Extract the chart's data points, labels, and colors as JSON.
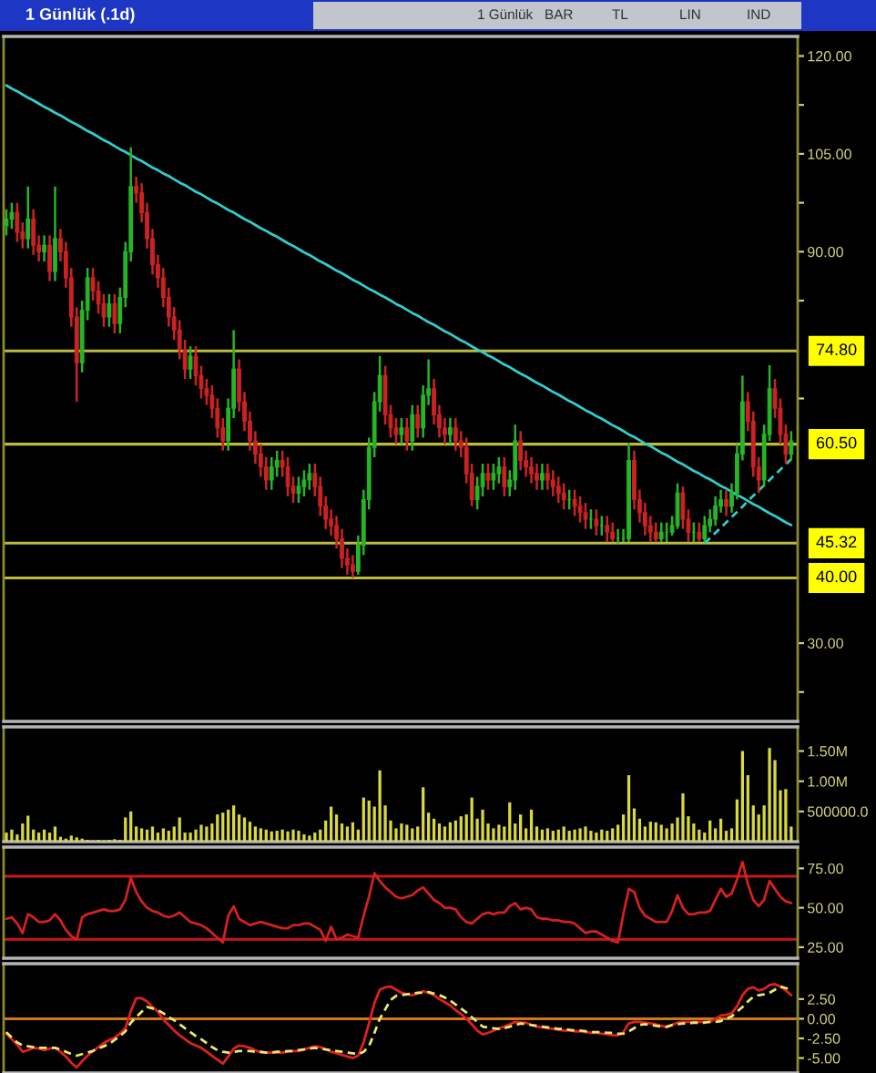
{
  "chart_data": [
    {
      "type": "candlestick",
      "title": "1 Günlük (.1d)",
      "annotations": [
        "1 Günlük",
        "BAR",
        "TL",
        "LIN",
        "IND"
      ],
      "categories": [
        null,
        null,
        null,
        null,
        null,
        null,
        null,
        null,
        null,
        null,
        null,
        null,
        null,
        null,
        null,
        null,
        null,
        null,
        null,
        null,
        null,
        null,
        null,
        null,
        null,
        null,
        null,
        null,
        null,
        null,
        null,
        null,
        null,
        null,
        null,
        null,
        null,
        null,
        null,
        null,
        null,
        null,
        null,
        null,
        null,
        null,
        null,
        null,
        null,
        null,
        null,
        null,
        null,
        null,
        null,
        null,
        null,
        null,
        null,
        null,
        null,
        null,
        null,
        null,
        null,
        null,
        null,
        null,
        null,
        null,
        null,
        null,
        null,
        null,
        null,
        null,
        null,
        null,
        null,
        null,
        null,
        null,
        null,
        null,
        null,
        null,
        null,
        null,
        null,
        null,
        null,
        null,
        null,
        null,
        null,
        null,
        null,
        null,
        null,
        null,
        null,
        null,
        null,
        null,
        null,
        null,
        null,
        null,
        null,
        null,
        null,
        null,
        null,
        null,
        null,
        null,
        null,
        null,
        null,
        null,
        null,
        null,
        null,
        null,
        null,
        null,
        null,
        null,
        null,
        null,
        null,
        null,
        null,
        null,
        null,
        null,
        null,
        null,
        null,
        null,
        null,
        null,
        null,
        null,
        null,
        null
      ],
      "ohlc": [
        [
          94,
          96.5,
          92.5,
          95
        ],
        [
          95,
          97.5,
          93.5,
          96
        ],
        [
          96,
          97.5,
          91.5,
          93
        ],
        [
          93,
          94.5,
          90.5,
          92
        ],
        [
          92,
          100,
          90.5,
          95
        ],
        [
          95,
          96.5,
          89.5,
          91
        ],
        [
          91,
          92.5,
          88.5,
          90
        ],
        [
          90,
          92.5,
          88.5,
          91
        ],
        [
          91,
          92.5,
          85.5,
          87
        ],
        [
          87,
          100,
          85.5,
          92
        ],
        [
          92,
          93.5,
          88.5,
          90
        ],
        [
          90,
          91.5,
          84.5,
          86
        ],
        [
          86,
          87.5,
          78.5,
          80
        ],
        [
          80,
          81.5,
          67,
          73
        ],
        [
          73,
          82.5,
          71.5,
          81
        ],
        [
          81,
          87.5,
          79.5,
          86
        ],
        [
          86,
          87.5,
          82.5,
          84
        ],
        [
          84,
          85.5,
          80.5,
          82
        ],
        [
          82,
          83.5,
          78.5,
          80
        ],
        [
          80,
          83.5,
          78.5,
          82
        ],
        [
          82,
          83.5,
          77.5,
          79
        ],
        [
          79,
          84.5,
          77.5,
          83
        ],
        [
          83,
          91.5,
          81.5,
          90
        ],
        [
          90,
          106,
          88.5,
          100
        ],
        [
          100,
          101.5,
          97.5,
          99
        ],
        [
          99,
          100.5,
          94.5,
          96
        ],
        [
          96,
          97.5,
          90.5,
          92
        ],
        [
          92,
          93.5,
          86.5,
          88
        ],
        [
          88,
          89.5,
          84.5,
          86
        ],
        [
          86,
          87.5,
          81.5,
          83
        ],
        [
          83,
          84.5,
          78.5,
          80
        ],
        [
          80,
          81.5,
          76.5,
          78
        ],
        [
          78,
          79.5,
          73.5,
          75
        ],
        [
          75,
          76.5,
          70.5,
          72
        ],
        [
          72,
          75.5,
          70.5,
          74
        ],
        [
          74,
          75.5,
          69.5,
          71
        ],
        [
          71,
          72.5,
          67.5,
          69
        ],
        [
          69,
          70.5,
          66.5,
          68
        ],
        [
          68,
          69.5,
          64.5,
          66
        ],
        [
          66,
          67.5,
          61.5,
          63
        ],
        [
          63,
          64.5,
          59.5,
          61
        ],
        [
          61,
          67.5,
          59.5,
          66
        ],
        [
          66,
          78,
          64.5,
          72
        ],
        [
          72,
          73.5,
          65.5,
          67
        ],
        [
          67,
          68.5,
          62.5,
          64
        ],
        [
          64,
          65.5,
          59.5,
          61
        ],
        [
          61,
          62.5,
          57.5,
          59
        ],
        [
          59,
          60.5,
          55.5,
          57
        ],
        [
          57,
          58.5,
          53.5,
          55
        ],
        [
          55,
          58.5,
          53.5,
          57
        ],
        [
          57,
          59.5,
          55.5,
          58
        ],
        [
          58,
          59.5,
          55.5,
          57
        ],
        [
          57,
          58.5,
          52.5,
          54
        ],
        [
          54,
          55.5,
          51.5,
          53
        ],
        [
          53,
          55.5,
          51.5,
          54
        ],
        [
          54,
          56.5,
          52.5,
          55
        ],
        [
          55,
          57.5,
          53.5,
          56
        ],
        [
          56,
          57.5,
          52.5,
          54
        ],
        [
          54,
          55.5,
          49.5,
          51
        ],
        [
          51,
          52.5,
          47.5,
          49
        ],
        [
          49,
          50.5,
          46.5,
          48
        ],
        [
          48,
          49.5,
          44.5,
          46
        ],
        [
          46,
          47.5,
          41.5,
          43
        ],
        [
          43,
          44.5,
          40.5,
          42
        ],
        [
          42,
          43.5,
          40,
          41
        ],
        [
          41,
          46.5,
          40.5,
          45
        ],
        [
          45,
          53.5,
          43.5,
          52
        ],
        [
          52,
          61.5,
          50.5,
          60
        ],
        [
          60,
          68.5,
          58.5,
          67
        ],
        [
          67,
          74,
          65.5,
          71
        ],
        [
          71,
          72.5,
          63.5,
          65
        ],
        [
          65,
          66.5,
          61.5,
          63
        ],
        [
          63,
          64.5,
          60.5,
          62
        ],
        [
          62,
          64.5,
          60.5,
          63
        ],
        [
          63,
          64.5,
          59.5,
          61
        ],
        [
          61,
          66.5,
          59.5,
          65
        ],
        [
          65,
          66.5,
          61.5,
          63
        ],
        [
          63,
          69.5,
          61.5,
          68
        ],
        [
          68,
          73.5,
          66.5,
          69
        ],
        [
          69,
          70.5,
          63.5,
          65
        ],
        [
          65,
          66.5,
          61.5,
          63
        ],
        [
          63,
          64.5,
          60.5,
          62
        ],
        [
          62,
          64.5,
          60.5,
          63
        ],
        [
          63,
          64.5,
          59.5,
          61
        ],
        [
          61,
          62.5,
          58.5,
          60
        ],
        [
          60,
          61.5,
          54.5,
          56
        ],
        [
          56,
          57.5,
          51,
          52
        ],
        [
          52,
          55.5,
          50.5,
          54
        ],
        [
          54,
          57.5,
          52.5,
          56
        ],
        [
          56,
          57.5,
          53.5,
          55
        ],
        [
          55,
          57.5,
          53.5,
          56
        ],
        [
          56,
          58.5,
          54.5,
          57
        ],
        [
          57,
          58.5,
          52.5,
          54
        ],
        [
          54,
          56.5,
          52.5,
          55
        ],
        [
          55,
          63.5,
          53.5,
          61
        ],
        [
          61,
          62.5,
          56.5,
          58
        ],
        [
          58,
          59.5,
          55.5,
          57
        ],
        [
          57,
          58.5,
          54.5,
          56
        ],
        [
          56,
          57.5,
          53.5,
          55
        ],
        [
          55,
          57.5,
          53.5,
          56
        ],
        [
          56,
          57.5,
          53.5,
          55
        ],
        [
          55,
          56.5,
          52.5,
          54
        ],
        [
          54,
          55.5,
          51.5,
          53
        ],
        [
          53,
          54.5,
          50.5,
          52
        ],
        [
          52,
          53.5,
          50.5,
          52
        ],
        [
          52,
          53.5,
          49.5,
          51
        ],
        [
          51,
          52.5,
          48.5,
          50
        ],
        [
          50,
          51.5,
          47.5,
          49
        ],
        [
          49,
          50.5,
          47.5,
          49
        ],
        [
          49,
          50.5,
          46.5,
          48
        ],
        [
          48,
          49.5,
          46.5,
          48
        ],
        [
          48,
          49.5,
          45.5,
          47
        ],
        [
          47,
          48.5,
          45.5,
          46
        ],
        [
          46,
          47.5,
          45.3,
          46
        ],
        [
          46,
          47.5,
          45.5,
          46
        ],
        [
          46,
          60.7,
          45.5,
          58
        ],
        [
          58,
          59.5,
          50.5,
          52
        ],
        [
          52,
          53.5,
          48.5,
          50
        ],
        [
          50,
          51.5,
          46.5,
          48
        ],
        [
          48,
          49.5,
          45.5,
          47
        ],
        [
          47,
          48.5,
          45.5,
          46
        ],
        [
          46,
          48.5,
          45.5,
          47
        ],
        [
          47,
          48.5,
          45.5,
          47
        ],
        [
          47,
          49.5,
          46.5,
          48
        ],
        [
          48,
          54.5,
          47.5,
          53
        ],
        [
          53,
          54,
          47.5,
          49
        ],
        [
          49,
          50.5,
          45.5,
          47
        ],
        [
          47,
          48.5,
          45.5,
          47
        ],
        [
          47,
          48.5,
          45.5,
          46
        ],
        [
          46,
          49.5,
          45.5,
          48
        ],
        [
          48,
          50.5,
          47,
          49
        ],
        [
          49,
          52.5,
          48,
          51
        ],
        [
          51,
          53.5,
          50,
          52
        ],
        [
          52,
          53.5,
          49.5,
          51
        ],
        [
          51,
          54.5,
          50,
          53
        ],
        [
          53,
          60.5,
          52,
          59
        ],
        [
          59,
          71,
          58,
          67
        ],
        [
          67,
          68.5,
          62.5,
          64
        ],
        [
          64,
          65.5,
          55.5,
          57
        ],
        [
          57,
          58.5,
          53,
          55
        ],
        [
          55,
          63.5,
          54,
          62
        ],
        [
          62,
          72.6,
          61,
          69
        ],
        [
          69,
          70.5,
          64.5,
          66
        ],
        [
          66,
          67.5,
          60.5,
          62
        ],
        [
          62,
          63.5,
          57.5,
          59
        ],
        [
          59,
          62.5,
          58,
          61
        ]
      ],
      "series": [
        {
          "type": "line",
          "color": "#33cccc",
          "values": [
            115.5,
            115.0,
            114.6,
            114.1,
            113.6,
            113.2,
            112.7,
            112.2,
            111.8,
            111.3,
            110.9,
            110.4,
            109.9,
            109.5,
            109.0,
            108.5,
            108.1,
            107.6,
            107.1,
            106.7,
            106.2,
            105.7,
            105.3,
            104.8,
            104.3,
            103.9,
            103.4,
            102.9,
            102.5,
            102.0,
            101.6,
            101.1,
            100.6,
            100.2,
            99.7,
            99.2,
            98.8,
            98.3,
            97.8,
            97.4,
            96.9,
            96.4,
            96.0,
            95.5,
            95.0,
            94.6,
            94.1,
            93.6,
            93.2,
            92.7,
            92.3,
            91.8,
            91.3,
            90.9,
            90.4,
            89.9,
            89.5,
            89.0,
            88.5,
            88.1,
            87.6,
            87.1,
            86.7,
            86.2,
            85.7,
            85.3,
            84.8,
            84.3,
            83.9,
            83.4,
            83.0,
            82.5,
            82.0,
            81.6,
            81.1,
            80.6,
            80.2,
            79.7,
            79.2,
            78.8,
            78.3,
            77.8,
            77.4,
            76.9,
            76.4,
            76.0,
            75.5,
            75.0,
            74.6,
            74.1,
            73.7,
            73.2,
            72.7,
            72.3,
            71.8,
            71.3,
            70.9,
            70.4,
            69.9,
            69.5,
            69.0,
            68.5,
            68.1,
            67.6,
            67.1,
            66.7,
            66.2,
            65.7,
            65.3,
            64.8,
            64.4,
            63.9,
            63.4,
            63.0,
            62.5,
            62.0,
            61.6,
            61.1,
            60.6,
            60.2,
            59.7,
            59.2,
            58.8,
            58.3,
            57.8,
            57.4,
            56.9,
            56.4,
            56.0,
            55.5,
            55.1,
            54.6,
            54.1,
            53.7,
            53.2,
            52.7,
            52.3,
            51.8,
            51.3,
            50.9,
            50.4,
            49.9,
            49.5,
            49.0,
            48.5,
            48.1
          ]
        },
        {
          "type": "line",
          "color": "#33cccc",
          "line_style": "dashed",
          "values": [
            null,
            null,
            null,
            null,
            null,
            null,
            null,
            null,
            null,
            null,
            null,
            null,
            null,
            null,
            null,
            null,
            null,
            null,
            null,
            null,
            null,
            null,
            null,
            null,
            null,
            null,
            null,
            null,
            null,
            null,
            null,
            null,
            null,
            null,
            null,
            null,
            null,
            null,
            null,
            null,
            null,
            null,
            null,
            null,
            null,
            null,
            null,
            null,
            null,
            null,
            null,
            null,
            null,
            null,
            null,
            null,
            null,
            null,
            null,
            null,
            null,
            null,
            null,
            null,
            null,
            null,
            null,
            null,
            null,
            null,
            null,
            null,
            null,
            null,
            null,
            null,
            null,
            null,
            null,
            null,
            null,
            null,
            null,
            null,
            null,
            null,
            null,
            null,
            null,
            null,
            null,
            null,
            null,
            null,
            null,
            null,
            null,
            null,
            null,
            null,
            null,
            null,
            null,
            null,
            null,
            null,
            null,
            null,
            null,
            null,
            null,
            null,
            null,
            null,
            null,
            null,
            null,
            null,
            null,
            null,
            null,
            null,
            null,
            null,
            null,
            null,
            null,
            null,
            null,
            45.3,
            46.1,
            46.9,
            47.7,
            48.5,
            49.3,
            50.1,
            50.9,
            51.8,
            52.6,
            53.4,
            54.2,
            55.0,
            55.8,
            56.6,
            57.4,
            58.2
          ]
        }
      ],
      "ylim": [
        18,
        123
      ],
      "yticks": [
        {
          "value": 120,
          "label": "120.00"
        },
        {
          "value": 112.5,
          "label": null
        },
        {
          "value": 105,
          "label": "105.00"
        },
        {
          "value": 97.5,
          "label": null
        },
        {
          "value": 90,
          "label": "90.00"
        },
        {
          "value": 82.5,
          "label": null
        },
        {
          "value": 67.5,
          "label": null
        },
        {
          "value": 30,
          "label": "30.00"
        },
        {
          "value": 22.5,
          "label": null
        }
      ],
      "ref_lines": [
        {
          "axis": "y",
          "value": 74.8,
          "label": "74.80",
          "color": "#bcbc3c"
        },
        {
          "axis": "y",
          "value": 60.5,
          "label": "60.50",
          "color": "#bcbc3c"
        },
        {
          "axis": "y",
          "value": 45.32,
          "label": "45.32",
          "color": "#bcbc3c"
        },
        {
          "axis": "y",
          "value": 40.0,
          "label": "40.00",
          "color": "#bcbc3c"
        }
      ]
    },
    {
      "type": "bar",
      "categories": [
        null,
        null,
        null,
        null,
        null,
        null,
        null,
        null,
        null,
        null,
        null,
        null,
        null,
        null,
        null,
        null,
        null,
        null,
        null,
        null,
        null,
        null,
        null,
        null,
        null,
        null,
        null,
        null,
        null,
        null,
        null,
        null,
        null,
        null,
        null,
        null,
        null,
        null,
        null,
        null,
        null,
        null,
        null,
        null,
        null,
        null,
        null,
        null,
        null,
        null,
        null,
        null,
        null,
        null,
        null,
        null,
        null,
        null,
        null,
        null,
        null,
        null,
        null,
        null,
        null,
        null,
        null,
        null,
        null,
        null,
        null,
        null,
        null,
        null,
        null,
        null,
        null,
        null,
        null,
        null,
        null,
        null,
        null,
        null,
        null,
        null,
        null,
        null,
        null,
        null,
        null,
        null,
        null,
        null,
        null,
        null,
        null,
        null,
        null,
        null,
        null,
        null,
        null,
        null,
        null,
        null,
        null,
        null,
        null,
        null,
        null,
        null,
        null,
        null,
        null,
        null,
        null,
        null,
        null,
        null,
        null,
        null,
        null,
        null,
        null,
        null,
        null,
        null,
        null,
        null,
        null,
        null,
        null,
        null,
        null,
        null,
        null,
        null,
        null,
        null,
        null,
        null,
        null,
        null,
        null,
        null
      ],
      "values": [
        150000,
        200000,
        120000,
        300000,
        430000,
        200000,
        150000,
        200000,
        150000,
        250000,
        80000,
        50000,
        100000,
        70000,
        50000,
        30000,
        20000,
        30000,
        20000,
        30000,
        40000,
        30000,
        400000,
        500000,
        250000,
        220000,
        200000,
        250000,
        150000,
        220000,
        180000,
        250000,
        400000,
        150000,
        150000,
        200000,
        280000,
        250000,
        300000,
        450000,
        480000,
        530000,
        600000,
        450000,
        400000,
        330000,
        250000,
        220000,
        200000,
        170000,
        180000,
        200000,
        170000,
        200000,
        180000,
        120000,
        100000,
        150000,
        200000,
        350000,
        580000,
        450000,
        300000,
        250000,
        320000,
        200000,
        730000,
        680000,
        580000,
        1180000,
        600000,
        350000,
        220000,
        300000,
        280000,
        220000,
        250000,
        900000,
        480000,
        380000,
        300000,
        250000,
        320000,
        350000,
        420000,
        450000,
        730000,
        380000,
        530000,
        300000,
        220000,
        280000,
        250000,
        650000,
        300000,
        450000,
        220000,
        530000,
        250000,
        200000,
        220000,
        180000,
        200000,
        250000,
        180000,
        200000,
        220000,
        250000,
        180000,
        150000,
        200000,
        180000,
        220000,
        280000,
        450000,
        1100000,
        550000,
        380000,
        250000,
        330000,
        320000,
        280000,
        220000,
        300000,
        400000,
        800000,
        420000,
        300000,
        200000,
        150000,
        350000,
        220000,
        380000,
        180000,
        220000,
        700000,
        1500000,
        1100000,
        600000,
        450000,
        600000,
        1550000,
        1350000,
        850000,
        870000,
        250000
      ],
      "color": "#d8d840",
      "ylim": [
        0,
        1900000
      ],
      "yticks": [
        {
          "value": 1500000,
          "label": "1.50M"
        },
        {
          "value": 1000000,
          "label": "1.00M"
        },
        {
          "value": 500000,
          "label": "500000.0"
        }
      ]
    },
    {
      "type": "line",
      "categories": [
        null,
        null,
        null,
        null,
        null,
        null,
        null,
        null,
        null,
        null,
        null,
        null,
        null,
        null,
        null,
        null,
        null,
        null,
        null,
        null,
        null,
        null,
        null,
        null,
        null,
        null,
        null,
        null,
        null,
        null,
        null,
        null,
        null,
        null,
        null,
        null,
        null,
        null,
        null,
        null,
        null,
        null,
        null,
        null,
        null,
        null,
        null,
        null,
        null,
        null,
        null,
        null,
        null,
        null,
        null,
        null,
        null,
        null,
        null,
        null,
        null,
        null,
        null,
        null,
        null,
        null,
        null,
        null,
        null,
        null,
        null,
        null,
        null,
        null,
        null,
        null,
        null,
        null,
        null,
        null,
        null,
        null,
        null,
        null,
        null,
        null,
        null,
        null,
        null,
        null,
        null,
        null,
        null,
        null,
        null,
        null,
        null,
        null,
        null,
        null,
        null,
        null,
        null,
        null,
        null,
        null,
        null,
        null,
        null,
        null,
        null,
        null,
        null,
        null,
        null,
        null,
        null,
        null,
        null,
        null,
        null,
        null,
        null,
        null,
        null,
        null,
        null,
        null,
        null,
        null,
        null,
        null,
        null,
        null,
        null,
        null,
        null,
        null,
        null,
        null,
        null,
        null,
        null,
        null,
        null,
        null
      ],
      "values": [
        43,
        44,
        40,
        34,
        46,
        44,
        41,
        41,
        42,
        46,
        42,
        36,
        32,
        30,
        44,
        46,
        47,
        48,
        49,
        48,
        48,
        49,
        55,
        69,
        60,
        54,
        50,
        48,
        47,
        45,
        44,
        45,
        47,
        44,
        41,
        40,
        39,
        37,
        34,
        31,
        28,
        45,
        51,
        43,
        41,
        39,
        40,
        41,
        40,
        39,
        38,
        37,
        37,
        39,
        39,
        40,
        40,
        38,
        36,
        29,
        38,
        30,
        31,
        33,
        32,
        31,
        45,
        57,
        72,
        67,
        63,
        60,
        57,
        56,
        57,
        58,
        61,
        63,
        59,
        55,
        53,
        50,
        50,
        49,
        44,
        41,
        40,
        43,
        46,
        47,
        46,
        47,
        47,
        51,
        53,
        49,
        50,
        49,
        44,
        43,
        43,
        42,
        42,
        41,
        41,
        40,
        37,
        34,
        35,
        35,
        33,
        31,
        29,
        28,
        46,
        62,
        60,
        50,
        45,
        43,
        41,
        41,
        41,
        48,
        58,
        50,
        46,
        46,
        47,
        47,
        48,
        55,
        62,
        57,
        59,
        68,
        79,
        65,
        55,
        51,
        55,
        67,
        62,
        57,
        54,
        53
      ],
      "color": "#d42020",
      "ylim": [
        18,
        88.5
      ],
      "yticks": [
        {
          "value": 75,
          "label": "75.00"
        },
        {
          "value": 50,
          "label": "50.00"
        },
        {
          "value": 25,
          "label": "25.00"
        }
      ],
      "ref_lines": [
        {
          "axis": "y",
          "value": 70,
          "color": "#c81818"
        },
        {
          "axis": "y",
          "value": 30,
          "color": "#c81818"
        }
      ]
    },
    {
      "type": "line",
      "categories": [
        null,
        null,
        null,
        null,
        null,
        null,
        null,
        null,
        null,
        null,
        null,
        null,
        null,
        null,
        null,
        null,
        null,
        null,
        null,
        null,
        null,
        null,
        null,
        null,
        null,
        null,
        null,
        null,
        null,
        null,
        null,
        null,
        null,
        null,
        null,
        null,
        null,
        null,
        null,
        null,
        null,
        null,
        null,
        null,
        null,
        null,
        null,
        null,
        null,
        null,
        null,
        null,
        null,
        null,
        null,
        null,
        null,
        null,
        null,
        null,
        null,
        null,
        null,
        null,
        null,
        null,
        null,
        null,
        null,
        null,
        null,
        null,
        null,
        null,
        null,
        null,
        null,
        null,
        null,
        null,
        null,
        null,
        null,
        null,
        null,
        null,
        null,
        null,
        null,
        null,
        null,
        null,
        null,
        null,
        null,
        null,
        null,
        null,
        null,
        null,
        null,
        null,
        null,
        null,
        null,
        null,
        null,
        null,
        null,
        null,
        null,
        null,
        null,
        null,
        null,
        null,
        null,
        null,
        null,
        null,
        null,
        null,
        null,
        null,
        null,
        null,
        null,
        null,
        null,
        null,
        null,
        null,
        null,
        null,
        null,
        null,
        null,
        null,
        null,
        null,
        null,
        null,
        null,
        null,
        null,
        null
      ],
      "series": [
        {
          "color": "#e02020",
          "values": [
            -1.9,
            -2.6,
            -3.3,
            -4.2,
            -4.0,
            -3.7,
            -3.8,
            -4.0,
            -3.8,
            -3.7,
            -4.2,
            -4.8,
            -5.6,
            -6.2,
            -5.4,
            -4.7,
            -4.1,
            -3.6,
            -3.1,
            -2.7,
            -2.4,
            -1.9,
            -1.2,
            1.0,
            2.6,
            2.6,
            2.2,
            1.5,
            0.9,
            -0.1,
            -0.8,
            -1.5,
            -2.1,
            -2.6,
            -3.1,
            -3.4,
            -3.7,
            -4.2,
            -4.7,
            -5.2,
            -5.7,
            -4.8,
            -3.8,
            -3.4,
            -3.5,
            -3.7,
            -4.0,
            -4.3,
            -4.3,
            -4.3,
            -4.3,
            -4.3,
            -4.2,
            -4.1,
            -4.1,
            -3.9,
            -3.7,
            -3.5,
            -3.6,
            -3.9,
            -4.2,
            -4.4,
            -4.6,
            -4.8,
            -5.0,
            -4.7,
            -3.0,
            -0.6,
            2.0,
            3.7,
            4.0,
            4.1,
            3.7,
            3.3,
            3.1,
            3.0,
            3.2,
            3.5,
            3.3,
            3.0,
            2.5,
            2.1,
            1.7,
            1.1,
            0.6,
            0.0,
            -0.7,
            -1.5,
            -2.0,
            -1.8,
            -1.5,
            -1.2,
            -1.0,
            -0.7,
            -0.4,
            -0.5,
            -0.5,
            -0.8,
            -1.0,
            -1.1,
            -1.2,
            -1.3,
            -1.4,
            -1.5,
            -1.5,
            -1.6,
            -1.6,
            -1.7,
            -1.8,
            -1.8,
            -1.9,
            -2.0,
            -2.1,
            -2.1,
            -1.7,
            -0.6,
            -0.4,
            -0.4,
            -0.5,
            -0.6,
            -0.7,
            -0.9,
            -1.1,
            -0.8,
            -0.5,
            -0.4,
            -0.4,
            -0.4,
            -0.4,
            -0.4,
            -0.4,
            0.0,
            0.4,
            0.5,
            0.7,
            1.6,
            3.0,
            3.8,
            4.0,
            3.6,
            3.8,
            4.3,
            4.4,
            4.1,
            3.6,
            3.0
          ]
        },
        {
          "color": "#e8e870",
          "line_style": "dashed",
          "values": [
            -1.7,
            -2.4,
            -3.0,
            -3.4,
            -3.5,
            -3.6,
            -3.7,
            -3.7,
            -3.7,
            -3.7,
            -3.9,
            -4.2,
            -4.5,
            -4.7,
            -4.5,
            -4.3,
            -4.1,
            -3.8,
            -3.5,
            -3.2,
            -2.7,
            -2.2,
            -1.6,
            -0.5,
            0.2,
            0.9,
            1.5,
            1.3,
            1.1,
            0.7,
            0.2,
            -0.2,
            -0.7,
            -1.2,
            -1.7,
            -2.2,
            -2.6,
            -3.1,
            -3.6,
            -4.0,
            -4.2,
            -4.3,
            -4.2,
            -4.1,
            -4.1,
            -4.1,
            -4.2,
            -4.2,
            -4.3,
            -4.3,
            -4.2,
            -4.2,
            -4.1,
            -4.1,
            -4.0,
            -3.9,
            -3.8,
            -3.7,
            -3.8,
            -3.9,
            -4.0,
            -4.1,
            -4.2,
            -4.3,
            -4.4,
            -4.5,
            -4.2,
            -3.5,
            -1.8,
            0.0,
            1.2,
            2.4,
            2.9,
            3.0,
            3.1,
            3.2,
            3.3,
            3.3,
            3.4,
            3.2,
            3.0,
            2.7,
            2.3,
            1.8,
            1.3,
            0.8,
            0.2,
            -0.4,
            -1.0,
            -1.1,
            -1.2,
            -1.3,
            -1.2,
            -1.0,
            -0.8,
            -0.6,
            -0.7,
            -0.8,
            -0.9,
            -1.0,
            -1.1,
            -1.2,
            -1.3,
            -1.3,
            -1.4,
            -1.5,
            -1.5,
            -1.6,
            -1.7,
            -1.7,
            -1.7,
            -1.8,
            -1.8,
            -1.9,
            -1.9,
            -1.6,
            -1.2,
            -0.8,
            -0.7,
            -0.8,
            -0.9,
            -1.0,
            -1.0,
            -0.8,
            -0.7,
            -0.6,
            -0.6,
            -0.5,
            -0.5,
            -0.5,
            -0.4,
            -0.4,
            -0.3,
            0.0,
            0.3,
            0.9,
            1.5,
            2.2,
            2.8,
            3.0,
            3.1,
            3.3,
            3.7,
            4.1,
            3.9,
            3.7
          ]
        }
      ],
      "ylim": [
        -6.9,
        7
      ],
      "yticks": [
        {
          "value": 2.5,
          "label": "2.50"
        },
        {
          "value": 0,
          "label": "0.00"
        },
        {
          "value": -2.5,
          "label": "-2.50"
        },
        {
          "value": -5,
          "label": "-5.00"
        }
      ],
      "ref_lines": [
        {
          "axis": "y",
          "value": 0,
          "color": "#d07820"
        }
      ]
    }
  ]
}
